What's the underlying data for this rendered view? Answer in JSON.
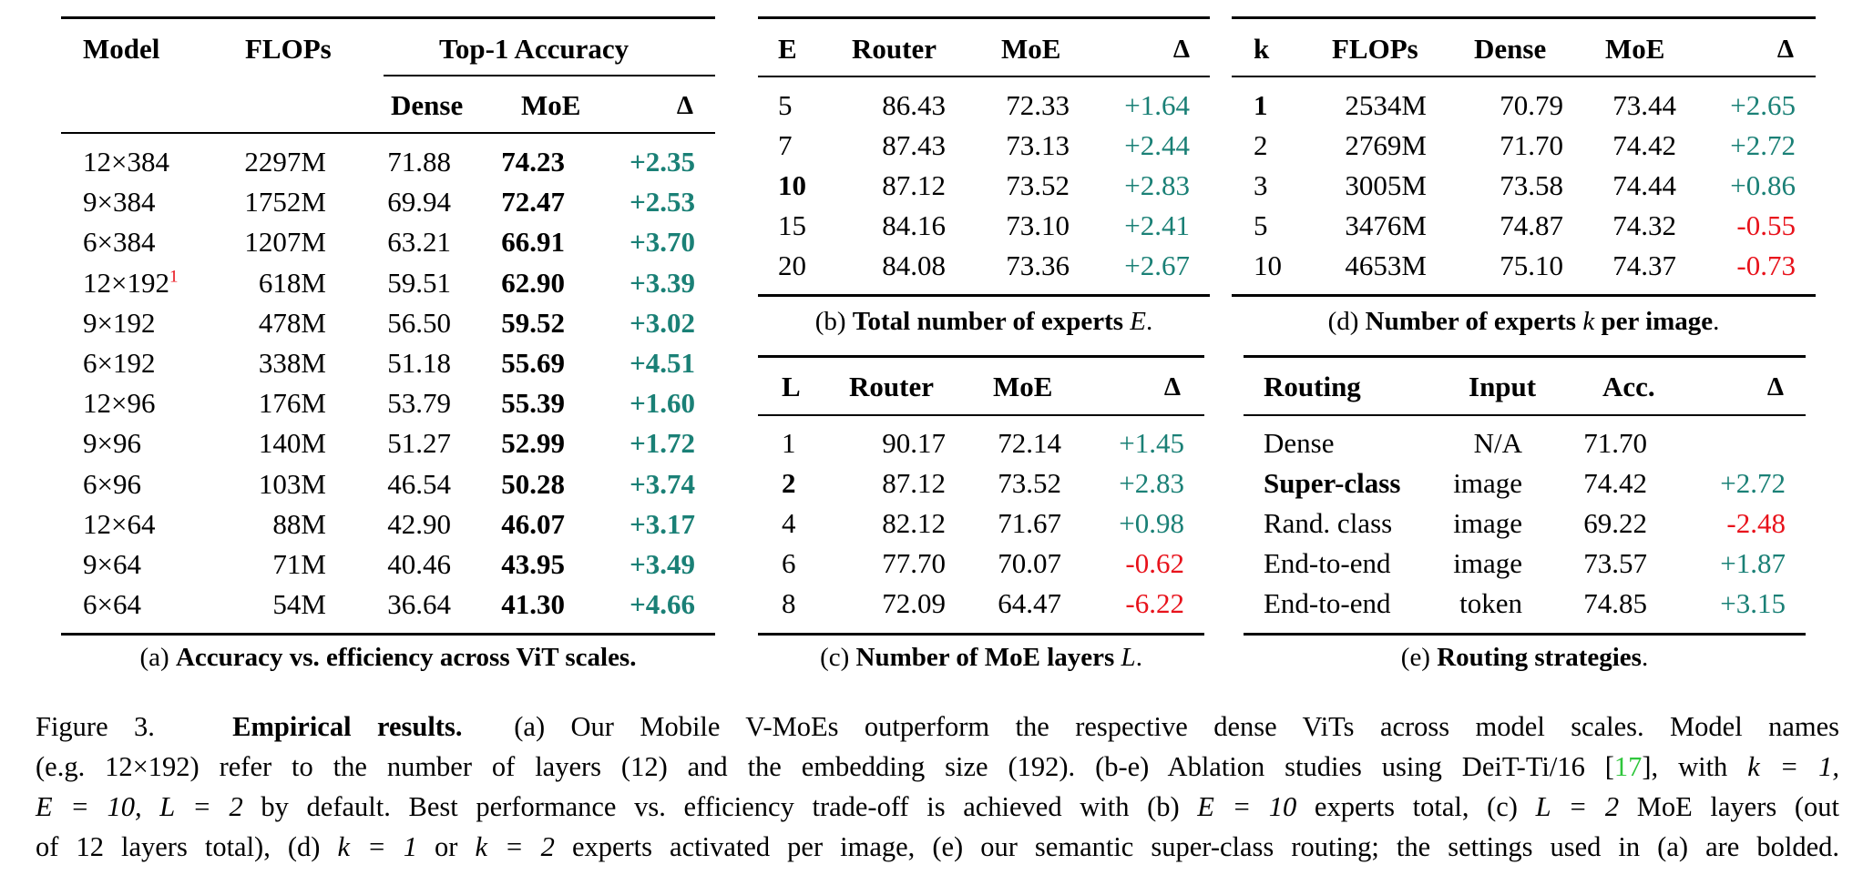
{
  "table_a": {
    "headers": {
      "model": "Model",
      "flops": "FLOPs",
      "top1": "Top-1 Accuracy",
      "dense": "Dense",
      "moe": "MoE",
      "delta": "Δ"
    },
    "rows": [
      {
        "model": "12×384",
        "sup": "",
        "flops": "2297M",
        "dense": "71.88",
        "moe": "74.23",
        "delta": "+2.35"
      },
      {
        "model": "9×384",
        "sup": "",
        "flops": "1752M",
        "dense": "69.94",
        "moe": "72.47",
        "delta": "+2.53"
      },
      {
        "model": "6×384",
        "sup": "",
        "flops": "1207M",
        "dense": "63.21",
        "moe": "66.91",
        "delta": "+3.70"
      },
      {
        "model": "12×192",
        "sup": "1",
        "flops": "618M",
        "dense": "59.51",
        "moe": "62.90",
        "delta": "+3.39"
      },
      {
        "model": "9×192",
        "sup": "",
        "flops": "478M",
        "dense": "56.50",
        "moe": "59.52",
        "delta": "+3.02"
      },
      {
        "model": "6×192",
        "sup": "",
        "flops": "338M",
        "dense": "51.18",
        "moe": "55.69",
        "delta": "+4.51"
      },
      {
        "model": "12×96",
        "sup": "",
        "flops": "176M",
        "dense": "53.79",
        "moe": "55.39",
        "delta": "+1.60"
      },
      {
        "model": "9×96",
        "sup": "",
        "flops": "140M",
        "dense": "51.27",
        "moe": "52.99",
        "delta": "+1.72"
      },
      {
        "model": "6×96",
        "sup": "",
        "flops": "103M",
        "dense": "46.54",
        "moe": "50.28",
        "delta": "+3.74"
      },
      {
        "model": "12×64",
        "sup": "",
        "flops": "88M",
        "dense": "42.90",
        "moe": "46.07",
        "delta": "+3.17"
      },
      {
        "model": "9×64",
        "sup": "",
        "flops": "71M",
        "dense": "40.46",
        "moe": "43.95",
        "delta": "+3.49"
      },
      {
        "model": "6×64",
        "sup": "",
        "flops": "54M",
        "dense": "36.64",
        "moe": "41.30",
        "delta": "+4.66"
      }
    ],
    "caption_prefix": "(a) ",
    "caption_bold": "Accuracy vs. efficiency across ViT scales."
  },
  "table_b": {
    "headers": {
      "e": "E",
      "router": "Router",
      "moe": "MoE",
      "delta": "Δ"
    },
    "rows": [
      {
        "e": "5",
        "bold": false,
        "router": "86.43",
        "moe": "72.33",
        "delta": "+1.64"
      },
      {
        "e": "7",
        "bold": false,
        "router": "87.43",
        "moe": "73.13",
        "delta": "+2.44"
      },
      {
        "e": "10",
        "bold": true,
        "router": "87.12",
        "moe": "73.52",
        "delta": "+2.83"
      },
      {
        "e": "15",
        "bold": false,
        "router": "84.16",
        "moe": "73.10",
        "delta": "+2.41"
      },
      {
        "e": "20",
        "bold": false,
        "router": "84.08",
        "moe": "73.36",
        "delta": "+2.67"
      }
    ],
    "caption_prefix": "(b) ",
    "caption_bold": "Total number of experts ",
    "caption_var": "E",
    "caption_end": "."
  },
  "table_c": {
    "headers": {
      "l": "L",
      "router": "Router",
      "moe": "MoE",
      "delta": "Δ"
    },
    "rows": [
      {
        "l": "1",
        "bold": false,
        "router": "90.17",
        "moe": "72.14",
        "delta": "+1.45"
      },
      {
        "l": "2",
        "bold": true,
        "router": "87.12",
        "moe": "73.52",
        "delta": "+2.83"
      },
      {
        "l": "4",
        "bold": false,
        "router": "82.12",
        "moe": "71.67",
        "delta": "+0.98"
      },
      {
        "l": "6",
        "bold": false,
        "router": "77.70",
        "moe": "70.07",
        "delta": "-0.62"
      },
      {
        "l": "8",
        "bold": false,
        "router": "72.09",
        "moe": "64.47",
        "delta": "-6.22"
      }
    ],
    "caption_prefix": "(c) ",
    "caption_bold": "Number of MoE layers ",
    "caption_var": "L",
    "caption_end": "."
  },
  "table_d": {
    "headers": {
      "k": "k",
      "flops": "FLOPs",
      "dense": "Dense",
      "moe": "MoE",
      "delta": "Δ"
    },
    "rows": [
      {
        "k": "1",
        "bold": true,
        "flops": "2534M",
        "dense": "70.79",
        "moe": "73.44",
        "delta": "+2.65"
      },
      {
        "k": "2",
        "bold": false,
        "flops": "2769M",
        "dense": "71.70",
        "moe": "74.42",
        "delta": "+2.72"
      },
      {
        "k": "3",
        "bold": false,
        "flops": "3005M",
        "dense": "73.58",
        "moe": "74.44",
        "delta": "+0.86"
      },
      {
        "k": "5",
        "bold": false,
        "flops": "3476M",
        "dense": "74.87",
        "moe": "74.32",
        "delta": "-0.55"
      },
      {
        "k": "10",
        "bold": false,
        "flops": "4653M",
        "dense": "75.10",
        "moe": "74.37",
        "delta": "-0.73"
      }
    ],
    "caption_prefix": "(d) ",
    "caption_bold": "Number of experts ",
    "caption_var": "k",
    "caption_bold2": " per image",
    "caption_end": "."
  },
  "table_e": {
    "headers": {
      "routing": "Routing",
      "input": "Input",
      "acc": "Acc.",
      "delta": "Δ"
    },
    "rows": [
      {
        "routing": "Dense",
        "bold": false,
        "input": "N/A",
        "acc": "71.70",
        "delta": ""
      },
      {
        "routing": "Super-class",
        "bold": true,
        "input": "image",
        "acc": "74.42",
        "delta": "+2.72"
      },
      {
        "routing": "Rand. class",
        "bold": false,
        "input": "image",
        "acc": "69.22",
        "delta": "-2.48"
      },
      {
        "routing": "End-to-end",
        "bold": false,
        "input": "image",
        "acc": "73.57",
        "delta": "+1.87"
      },
      {
        "routing": "End-to-end",
        "bold": false,
        "input": "token",
        "acc": "74.85",
        "delta": "+3.15"
      }
    ],
    "caption_prefix": "(e) ",
    "caption_bold": "Routing strategies",
    "caption_end": "."
  },
  "figure_caption": {
    "label": "Figure 3.",
    "title": "Empirical results.",
    "l1_rest": "(a) Our Mobile V-MoEs outperform the respective dense ViTs across model scales. Model names",
    "l2_a": "(e.g. 12×192) refer to the number of layers (12) and the embedding size (192). (b-e) Ablation studies using DeiT-Ti/16 [",
    "l2_ref": "17",
    "l2_b": "], with ",
    "l2_eq": "k = 1,",
    "l3_eq1": "E = 10, L = 2",
    "l3_a": " by default. Best performance vs. efficiency trade-off is achieved with (b) ",
    "l3_eq2": "E = 10",
    "l3_b": " experts total, (c) ",
    "l3_eq3": "L = 2",
    "l3_c": " MoE layers (out",
    "l4_a": "of 12 layers total), (d) ",
    "l4_eq1": "k = 1",
    "l4_b": " or ",
    "l4_eq2": "k = 2",
    "l4_c": " experts activated per image, (e) our semantic super-class routing; the settings used in (a) are bolded."
  }
}
